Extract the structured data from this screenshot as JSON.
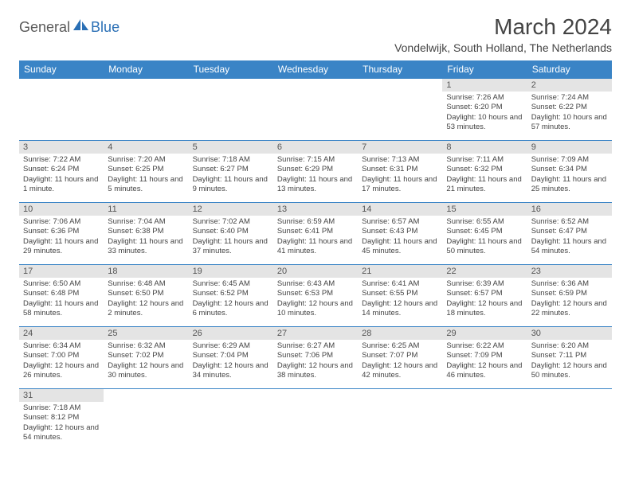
{
  "logo": {
    "general": "General",
    "blue": "Blue"
  },
  "title": "March 2024",
  "location": "Vondelwijk, South Holland, The Netherlands",
  "header_bg": "#3a84c6",
  "daynum_bg": "#e4e4e4",
  "border_color": "#3a84c6",
  "dayNames": [
    "Sunday",
    "Monday",
    "Tuesday",
    "Wednesday",
    "Thursday",
    "Friday",
    "Saturday"
  ],
  "weeks": [
    [
      null,
      null,
      null,
      null,
      null,
      {
        "n": "1",
        "sr": "7:26 AM",
        "ss": "6:20 PM",
        "dl": "10 hours and 53 minutes."
      },
      {
        "n": "2",
        "sr": "7:24 AM",
        "ss": "6:22 PM",
        "dl": "10 hours and 57 minutes."
      }
    ],
    [
      {
        "n": "3",
        "sr": "7:22 AM",
        "ss": "6:24 PM",
        "dl": "11 hours and 1 minute."
      },
      {
        "n": "4",
        "sr": "7:20 AM",
        "ss": "6:25 PM",
        "dl": "11 hours and 5 minutes."
      },
      {
        "n": "5",
        "sr": "7:18 AM",
        "ss": "6:27 PM",
        "dl": "11 hours and 9 minutes."
      },
      {
        "n": "6",
        "sr": "7:15 AM",
        "ss": "6:29 PM",
        "dl": "11 hours and 13 minutes."
      },
      {
        "n": "7",
        "sr": "7:13 AM",
        "ss": "6:31 PM",
        "dl": "11 hours and 17 minutes."
      },
      {
        "n": "8",
        "sr": "7:11 AM",
        "ss": "6:32 PM",
        "dl": "11 hours and 21 minutes."
      },
      {
        "n": "9",
        "sr": "7:09 AM",
        "ss": "6:34 PM",
        "dl": "11 hours and 25 minutes."
      }
    ],
    [
      {
        "n": "10",
        "sr": "7:06 AM",
        "ss": "6:36 PM",
        "dl": "11 hours and 29 minutes."
      },
      {
        "n": "11",
        "sr": "7:04 AM",
        "ss": "6:38 PM",
        "dl": "11 hours and 33 minutes."
      },
      {
        "n": "12",
        "sr": "7:02 AM",
        "ss": "6:40 PM",
        "dl": "11 hours and 37 minutes."
      },
      {
        "n": "13",
        "sr": "6:59 AM",
        "ss": "6:41 PM",
        "dl": "11 hours and 41 minutes."
      },
      {
        "n": "14",
        "sr": "6:57 AM",
        "ss": "6:43 PM",
        "dl": "11 hours and 45 minutes."
      },
      {
        "n": "15",
        "sr": "6:55 AM",
        "ss": "6:45 PM",
        "dl": "11 hours and 50 minutes."
      },
      {
        "n": "16",
        "sr": "6:52 AM",
        "ss": "6:47 PM",
        "dl": "11 hours and 54 minutes."
      }
    ],
    [
      {
        "n": "17",
        "sr": "6:50 AM",
        "ss": "6:48 PM",
        "dl": "11 hours and 58 minutes."
      },
      {
        "n": "18",
        "sr": "6:48 AM",
        "ss": "6:50 PM",
        "dl": "12 hours and 2 minutes."
      },
      {
        "n": "19",
        "sr": "6:45 AM",
        "ss": "6:52 PM",
        "dl": "12 hours and 6 minutes."
      },
      {
        "n": "20",
        "sr": "6:43 AM",
        "ss": "6:53 PM",
        "dl": "12 hours and 10 minutes."
      },
      {
        "n": "21",
        "sr": "6:41 AM",
        "ss": "6:55 PM",
        "dl": "12 hours and 14 minutes."
      },
      {
        "n": "22",
        "sr": "6:39 AM",
        "ss": "6:57 PM",
        "dl": "12 hours and 18 minutes."
      },
      {
        "n": "23",
        "sr": "6:36 AM",
        "ss": "6:59 PM",
        "dl": "12 hours and 22 minutes."
      }
    ],
    [
      {
        "n": "24",
        "sr": "6:34 AM",
        "ss": "7:00 PM",
        "dl": "12 hours and 26 minutes."
      },
      {
        "n": "25",
        "sr": "6:32 AM",
        "ss": "7:02 PM",
        "dl": "12 hours and 30 minutes."
      },
      {
        "n": "26",
        "sr": "6:29 AM",
        "ss": "7:04 PM",
        "dl": "12 hours and 34 minutes."
      },
      {
        "n": "27",
        "sr": "6:27 AM",
        "ss": "7:06 PM",
        "dl": "12 hours and 38 minutes."
      },
      {
        "n": "28",
        "sr": "6:25 AM",
        "ss": "7:07 PM",
        "dl": "12 hours and 42 minutes."
      },
      {
        "n": "29",
        "sr": "6:22 AM",
        "ss": "7:09 PM",
        "dl": "12 hours and 46 minutes."
      },
      {
        "n": "30",
        "sr": "6:20 AM",
        "ss": "7:11 PM",
        "dl": "12 hours and 50 minutes."
      }
    ],
    [
      {
        "n": "31",
        "sr": "7:18 AM",
        "ss": "8:12 PM",
        "dl": "12 hours and 54 minutes."
      },
      null,
      null,
      null,
      null,
      null,
      null
    ]
  ],
  "labels": {
    "sunrise": "Sunrise:",
    "sunset": "Sunset:",
    "daylight": "Daylight:"
  }
}
